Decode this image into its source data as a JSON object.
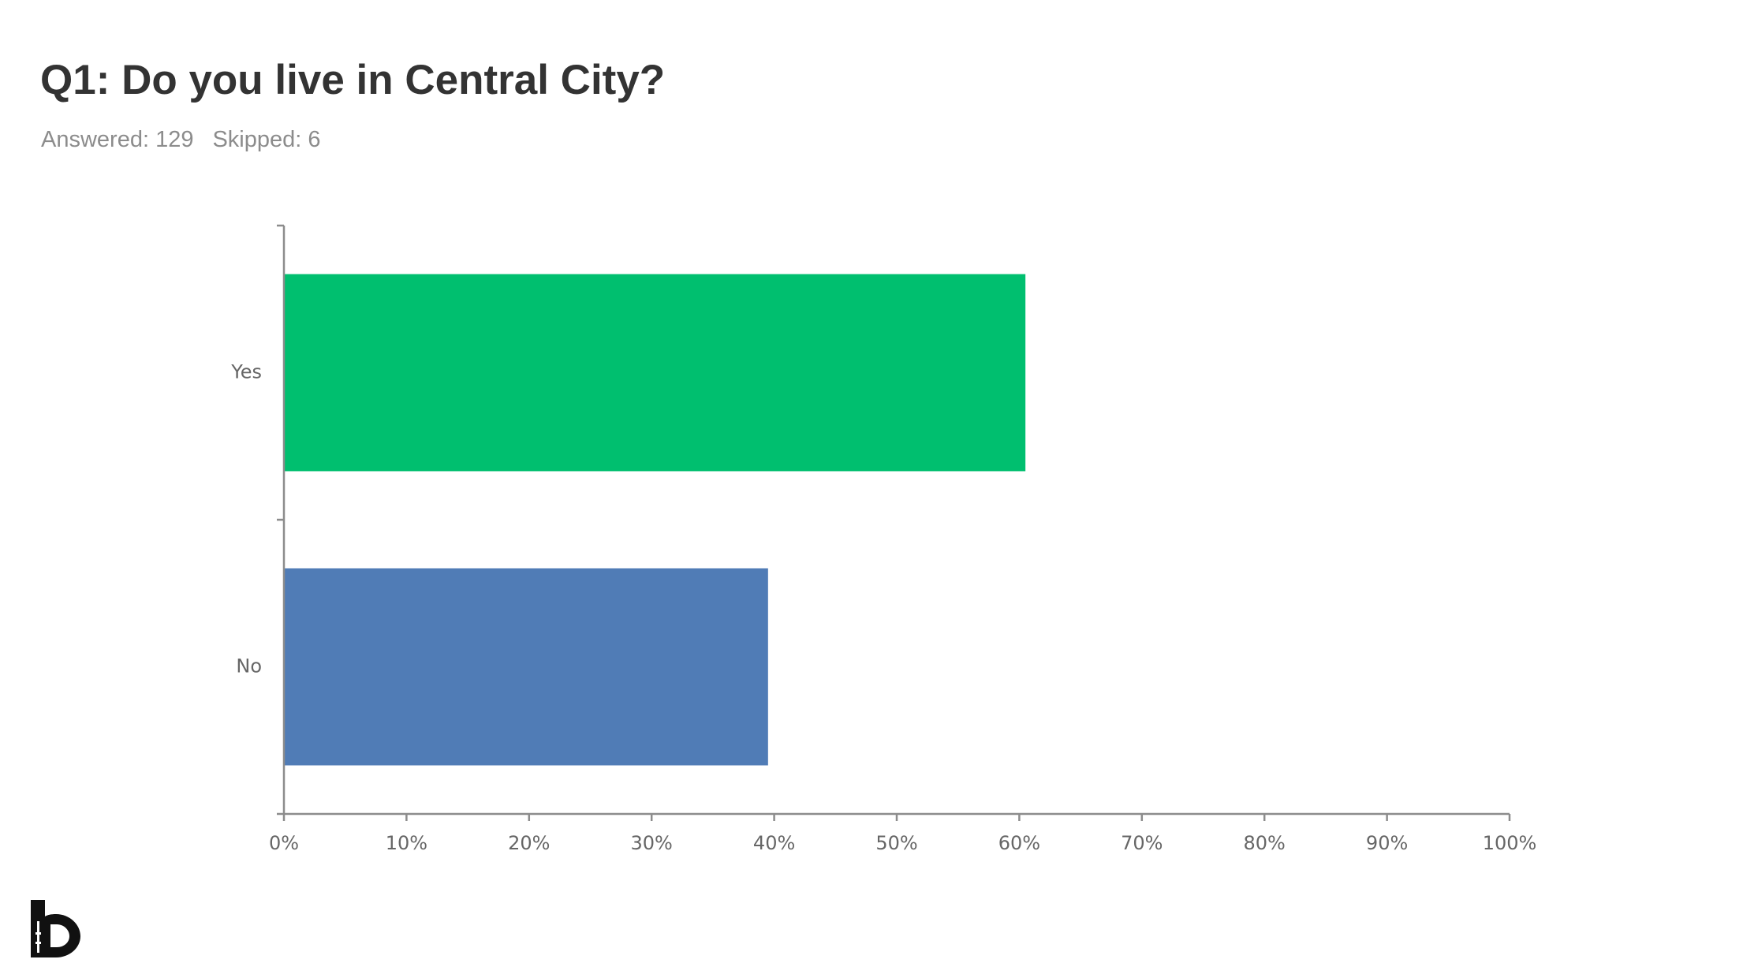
{
  "header": {
    "title": "Q1: Do you live in Central City?",
    "answered": "Answered: 129",
    "skipped": "Skipped: 6"
  },
  "chart_data": {
    "type": "bar",
    "orientation": "horizontal",
    "categories": [
      "Yes",
      "No"
    ],
    "values": [
      60.5,
      39.5
    ],
    "colors": [
      "#00BF6F",
      "#507CB6"
    ],
    "xlim": [
      0,
      100
    ],
    "xticks": [
      "0%",
      "10%",
      "20%",
      "30%",
      "40%",
      "50%",
      "60%",
      "70%",
      "80%",
      "90%",
      "100%"
    ],
    "grid": false,
    "legend": "none"
  },
  "colors": {
    "title": "#333333",
    "subtitle": "#8c8c8c",
    "axis": "#8c8c8c",
    "tick_label": "#666666"
  }
}
